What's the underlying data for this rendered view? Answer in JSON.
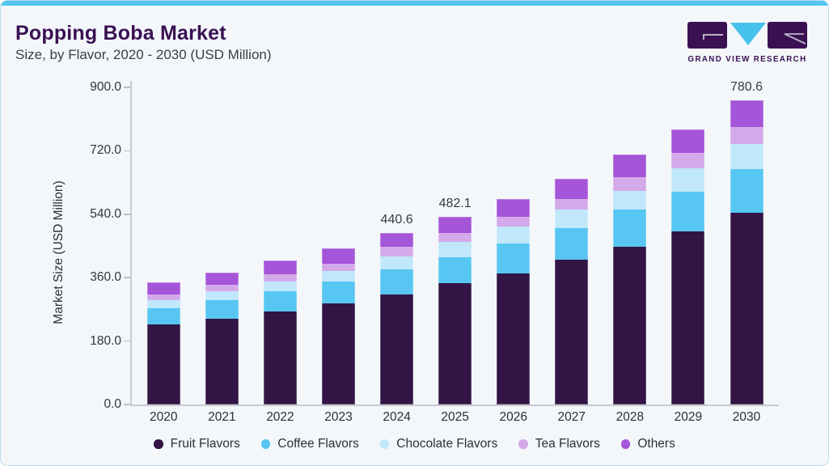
{
  "page": {
    "title": "Popping Boba Market",
    "subtitle": "Size, by Flavor, 2020 - 2030 (USD Million)"
  },
  "logo": {
    "text": "GRAND VIEW RESEARCH",
    "brand_purple": "#3a1053",
    "brand_blue": "#47c2ef"
  },
  "chart_data": {
    "type": "bar",
    "stacked": true,
    "title": "Popping Boba Market Size, by Flavor, 2020 - 2030 (USD Million)",
    "xlabel": "",
    "ylabel": "Market Size (USD Million)",
    "ylim": [
      0,
      900
    ],
    "y_ticks": [
      "0.0",
      "180.0",
      "360.0",
      "540.0",
      "720.0",
      "900.0"
    ],
    "grid": false,
    "legend_position": "bottom",
    "categories": [
      "2020",
      "2021",
      "2022",
      "2023",
      "2024",
      "2025",
      "2026",
      "2027",
      "2028",
      "2029",
      "2030"
    ],
    "series": [
      {
        "name": "Fruit Flavors",
        "color": "#321445",
        "values": [
          204.8,
          220.5,
          239.4,
          259.0,
          283.4,
          311.0,
          336.7,
          371.5,
          404.9,
          445.2,
          491.9
        ]
      },
      {
        "name": "Coffee Flavors",
        "color": "#57c6f2",
        "values": [
          42.0,
          47.0,
          52.1,
          56.0,
          62.9,
          67.6,
          77.8,
          81.9,
          95.9,
          102.2,
          113.6
        ]
      },
      {
        "name": "Chocolate Flavors",
        "color": "#c0e7fa",
        "values": [
          21.5,
          23.3,
          25.0,
          27.0,
          34.7,
          38.5,
          41.7,
          47.3,
          48.0,
          59.0,
          62.9
        ]
      },
      {
        "name": "Tea Flavors",
        "color": "#d4a9ea",
        "values": [
          15.0,
          16.0,
          17.5,
          19.5,
          24.0,
          23.0,
          25.0,
          27.7,
          35.4,
          39.6,
          44.4
        ]
      },
      {
        "name": "Others",
        "color": "#a555d8",
        "values": [
          30.0,
          31.5,
          35.4,
          39.0,
          35.6,
          42.0,
          46.7,
          52.1,
          56.9,
          61.3,
          67.8
        ]
      }
    ],
    "totals": [
      313.3,
      338.3,
      369.4,
      400.5,
      440.6,
      482.1,
      527.9,
      580.5,
      641.1,
      707.3,
      780.6
    ],
    "value_labels": {
      "2024": "440.6",
      "2025": "482.1",
      "2030": "780.6"
    }
  }
}
